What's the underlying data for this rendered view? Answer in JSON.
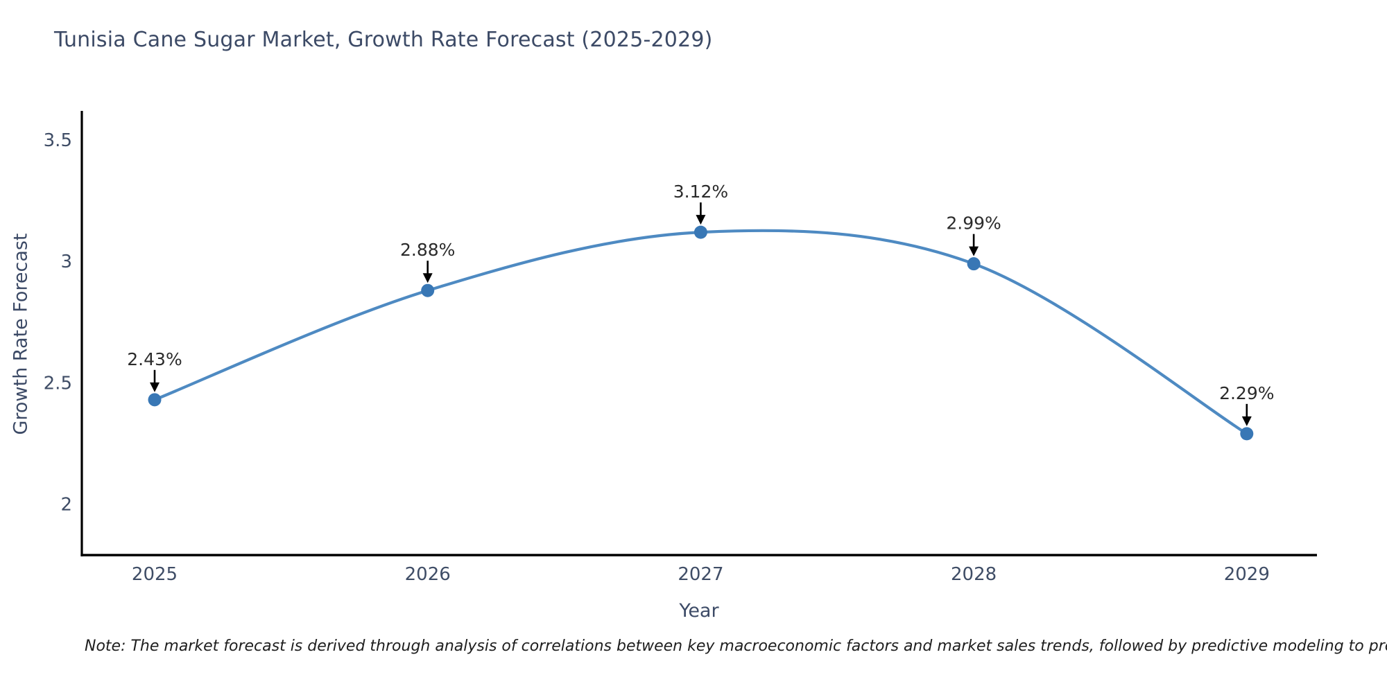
{
  "note": "Note: The market forecast is derived through analysis of correlations between key macroeconomic factors and market sales trends, followed by predictive modeling to project future sales",
  "chart_data": {
    "type": "line",
    "line_shape": "spline",
    "title": "Tunisia Cane Sugar Market, Growth Rate Forecast (2025-2029)",
    "xlabel": "Year",
    "ylabel": "Growth Rate Forecast",
    "x": [
      2025,
      2026,
      2027,
      2028,
      2029
    ],
    "values": [
      2.43,
      2.88,
      3.12,
      2.99,
      2.29
    ],
    "point_labels": [
      "2.43%",
      "2.88%",
      "3.12%",
      "2.99%",
      "2.29%"
    ],
    "xtick_labels": [
      "2025",
      "2026",
      "2027",
      "2028",
      "2029"
    ],
    "yticks": [
      2,
      2.5,
      3,
      3.5
    ],
    "ytick_labels": [
      "2",
      "2.5",
      "3",
      "3.5"
    ],
    "ylim": [
      1.79,
      3.62
    ],
    "grid": false,
    "legend": "none",
    "markers": true,
    "annotations_with_arrows": true,
    "colors": {
      "line": "#4e8ac2",
      "marker": "#3877b5",
      "axis": "#000000",
      "axis_text": "#3f4d66",
      "title_text": "#3c4a66",
      "annotation_text": "#2b2b2b",
      "note_text": "#1e1e1e",
      "background": "#ffffff"
    }
  }
}
